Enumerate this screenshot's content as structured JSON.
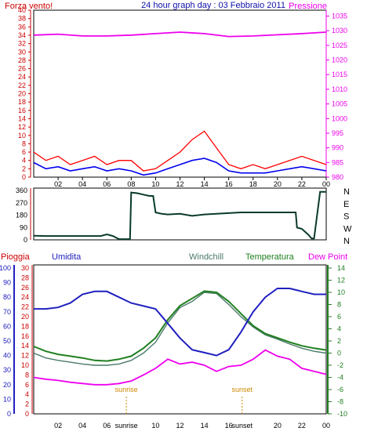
{
  "header": {
    "title": "24 hour graph day : 03 Febbraio 2011",
    "left_label": "Forza vento!",
    "right_label": "Pressione"
  },
  "colors": {
    "wind_avg": "#0000ee",
    "wind_gust": "#ff0000",
    "pressure": "#ee00ee",
    "direction": "#0a3a2a",
    "rain": "#cc0000",
    "humidity": "#2020c0",
    "windchill": "#4a7a6a",
    "temperature": "#1f7f1f",
    "dewpoint": "#ee00ee",
    "sun_marker": "#cc8800",
    "frame": "#000000"
  },
  "legend": {
    "rain": "Pioggia",
    "humidity": "Umidita",
    "windchill": "Windchill",
    "temperature": "Temperatura",
    "dewpoint": "Dew Point"
  },
  "sun": {
    "sunrise_label": "sunrise",
    "sunset_label": "sunset",
    "sunrise_hour": 7.6,
    "sunset_hour": 17.1
  },
  "chart_data": [
    {
      "type": "line",
      "title": "24 hour graph day : 03 Febbraio 2011",
      "xlabel": "",
      "ylabel": "Forza vento!",
      "x_ticks": [
        "02",
        "04",
        "06",
        "08",
        "10",
        "12",
        "14",
        "16",
        "18",
        "20",
        "22",
        "00"
      ],
      "y_ticks": [
        "0",
        "2",
        "4",
        "6",
        "8",
        "10",
        "12",
        "14",
        "16",
        "18",
        "20",
        "22",
        "24",
        "26",
        "28",
        "30",
        "32",
        "34",
        "36",
        "38",
        "40"
      ],
      "y2_ticks": [
        "980",
        "985",
        "990",
        "995",
        "1000",
        "1005",
        "1010",
        "1015",
        "1020",
        "1025",
        "1030",
        "1035"
      ],
      "xlim": [
        0,
        24
      ],
      "ylim": [
        0,
        40
      ],
      "y2lim": [
        980,
        1037
      ],
      "series": [
        {
          "name": "Forza vento!",
          "axis": "left",
          "x": [
            0,
            1,
            2,
            3,
            4,
            5,
            6,
            7,
            8,
            9,
            10,
            11,
            12,
            13,
            14,
            15,
            16,
            17,
            18,
            19,
            20,
            21,
            22,
            23,
            24
          ],
          "values": [
            3.5,
            2,
            2.5,
            1.5,
            2,
            2.5,
            1.5,
            2,
            1.5,
            0.5,
            1,
            2,
            3,
            4,
            4.5,
            3.5,
            1.5,
            1,
            1,
            1,
            1.5,
            2,
            2.5,
            2,
            1.5
          ]
        },
        {
          "name": "",
          "axis": "left",
          "x": [
            0,
            1,
            2,
            3,
            4,
            5,
            6,
            7,
            8,
            9,
            10,
            11,
            12,
            13,
            14,
            15,
            16,
            17,
            18,
            19,
            20,
            21,
            22,
            23,
            24
          ],
          "values": [
            6,
            4,
            5,
            3,
            4,
            5,
            3,
            4,
            4,
            1.5,
            2,
            4,
            6,
            9,
            11,
            7,
            3,
            2,
            3,
            2,
            3,
            4,
            5,
            4,
            3
          ]
        },
        {
          "name": "Pressione",
          "axis": "right",
          "x": [
            0,
            2,
            4,
            6,
            8,
            10,
            12,
            14,
            16,
            18,
            20,
            22,
            24
          ],
          "values": [
            1028.5,
            1028.8,
            1028.2,
            1028.2,
            1028.5,
            1029,
            1029.5,
            1029,
            1028,
            1028.2,
            1028.6,
            1029,
            1029.5
          ]
        }
      ]
    },
    {
      "type": "line",
      "title": "",
      "xlabel": "",
      "ylabel": "",
      "y_ticks": [
        "0",
        "90",
        "180",
        "270",
        "360"
      ],
      "y_right_labels": [
        "N",
        "W",
        "S",
        "E",
        "N"
      ],
      "xlim": [
        0,
        24
      ],
      "ylim": [
        0,
        360
      ],
      "series": [
        {
          "name": "",
          "x": [
            0,
            1,
            2,
            3,
            4,
            5,
            5.5,
            6,
            6.5,
            7,
            7.5,
            7.8,
            7.9,
            8,
            8.5,
            9,
            9.5,
            9.8,
            10,
            10.5,
            11,
            12,
            13,
            14,
            15,
            16,
            17,
            18,
            19,
            20,
            21,
            21.5,
            21.6,
            22,
            22.5,
            22.8,
            23,
            23.5,
            24
          ],
          "values": [
            30,
            28,
            28,
            28,
            28,
            28,
            28,
            40,
            28,
            5,
            5,
            5,
            5,
            345,
            340,
            330,
            320,
            320,
            200,
            190,
            185,
            190,
            175,
            185,
            190,
            195,
            200,
            200,
            200,
            200,
            200,
            200,
            90,
            80,
            40,
            10,
            10,
            350,
            350
          ]
        }
      ]
    },
    {
      "type": "line",
      "title": "",
      "xlabel": "",
      "ylabel": "",
      "y_left1_ticks": [
        "0",
        "10",
        "20",
        "30",
        "40",
        "50",
        "60",
        "70",
        "80",
        "90",
        "100"
      ],
      "y_left2_ticks": [
        "0",
        "2",
        "4",
        "6",
        "8",
        "10",
        "12",
        "14",
        "16",
        "18",
        "20",
        "22",
        "24",
        "26",
        "28",
        "30"
      ],
      "y_right_ticks": [
        "-10",
        "-8",
        "-6",
        "-4",
        "-2",
        "0",
        "2",
        "4",
        "6",
        "8",
        "10",
        "12",
        "14"
      ],
      "xlim": [
        0,
        24
      ],
      "ylim_humidity": [
        0,
        100
      ],
      "ylim_temp": [
        -10,
        14
      ],
      "series": [
        {
          "name": "Umidita",
          "axis": "left1",
          "x": [
            0,
            1,
            2,
            3,
            4,
            5,
            6,
            7,
            8,
            9,
            10,
            11,
            12,
            13,
            14,
            15,
            16,
            17,
            18,
            19,
            20,
            21,
            22,
            23,
            24
          ],
          "values": [
            72,
            72,
            73,
            76,
            82,
            84,
            84,
            80,
            76,
            74,
            72,
            62,
            52,
            44,
            42,
            40,
            44,
            56,
            70,
            80,
            86,
            86,
            84,
            82,
            82
          ]
        },
        {
          "name": "Temperatura",
          "axis": "right",
          "x": [
            0,
            1,
            2,
            3,
            4,
            5,
            6,
            7,
            8,
            9,
            10,
            11,
            12,
            13,
            14,
            15,
            16,
            17,
            18,
            19,
            20,
            21,
            22,
            23,
            24
          ],
          "values": [
            1.1,
            0.3,
            -0.2,
            -0.5,
            -0.8,
            -1.2,
            -1.3,
            -1.0,
            -0.5,
            0.8,
            2.5,
            5.5,
            7.8,
            9.0,
            10.2,
            10.0,
            8.5,
            6.5,
            4.5,
            3.2,
            2.5,
            1.8,
            1.2,
            0.8,
            0.5
          ]
        },
        {
          "name": "Windchill",
          "axis": "right",
          "x": [
            0,
            1,
            2,
            3,
            4,
            5,
            6,
            7,
            8,
            9,
            10,
            11,
            12,
            13,
            14,
            15,
            16,
            17,
            18,
            19,
            20,
            21,
            22,
            23,
            24
          ],
          "values": [
            0.0,
            -0.8,
            -1.2,
            -1.5,
            -1.8,
            -2.0,
            -2.0,
            -1.8,
            -1.2,
            0.0,
            1.8,
            5.0,
            7.5,
            8.5,
            10.0,
            9.8,
            8.0,
            6.0,
            4.3,
            3.0,
            2.3,
            1.5,
            0.8,
            0.3,
            0.0
          ]
        },
        {
          "name": "Dew Point",
          "axis": "right",
          "x": [
            0,
            1,
            2,
            3,
            4,
            5,
            6,
            7,
            8,
            9,
            10,
            11,
            12,
            13,
            14,
            15,
            16,
            17,
            18,
            19,
            20,
            21,
            22,
            23,
            24
          ],
          "values": [
            -4.0,
            -4.3,
            -4.5,
            -4.8,
            -5.0,
            -5.2,
            -5.2,
            -5.0,
            -4.6,
            -3.6,
            -2.5,
            -1.0,
            -1.8,
            -1.5,
            -2.0,
            -3.0,
            -2.2,
            -2.0,
            -1.0,
            0.5,
            -0.5,
            -1.0,
            -2.5,
            -3.0,
            -3.5
          ]
        }
      ]
    }
  ]
}
